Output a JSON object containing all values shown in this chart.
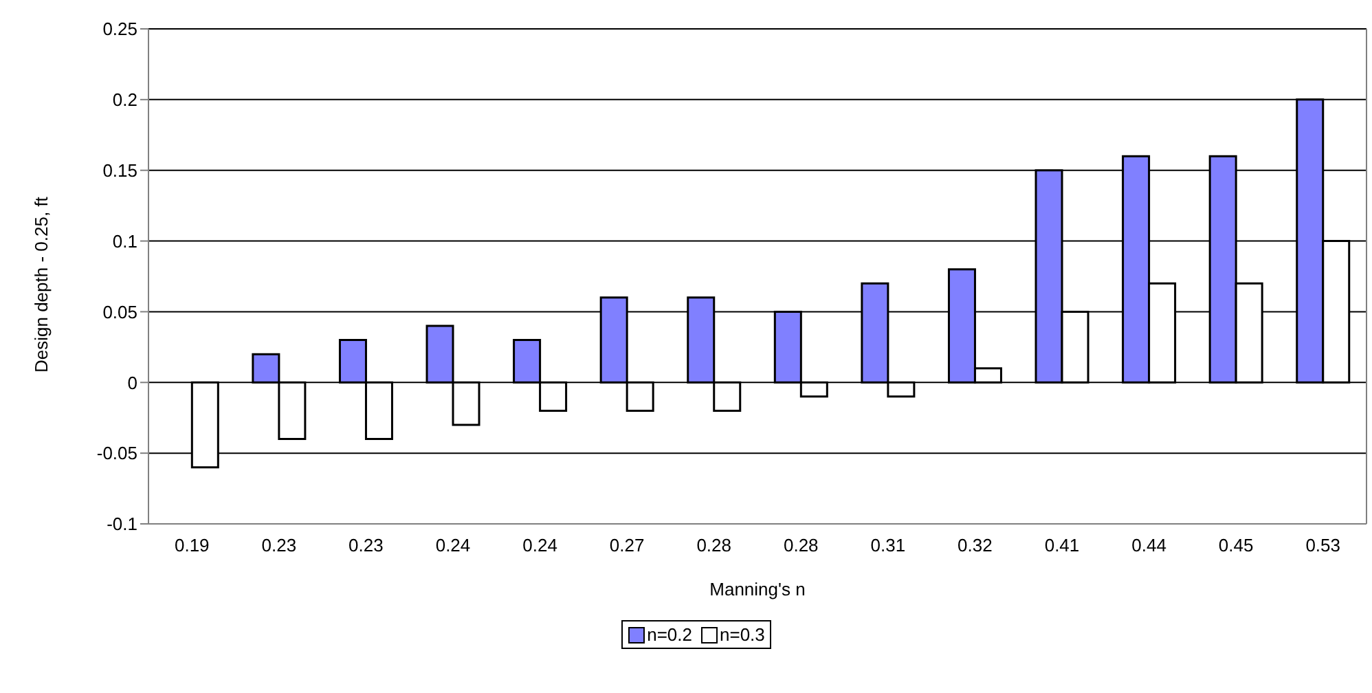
{
  "chart_data": {
    "type": "bar",
    "xlabel": "Manning's n",
    "ylabel": "Design depth - 0.25, ft",
    "categories": [
      "0.19",
      "0.23",
      "0.23",
      "0.24",
      "0.24",
      "0.27",
      "0.28",
      "0.28",
      "0.31",
      "0.32",
      "0.41",
      "0.44",
      "0.45",
      "0.53"
    ],
    "series": [
      {
        "name": "n=0.2",
        "color": "#8080ff",
        "values": [
          0,
          0.02,
          0.03,
          0.04,
          0.03,
          0.06,
          0.06,
          0.05,
          0.07,
          0.08,
          0.15,
          0.16,
          0.16,
          0.2
        ]
      },
      {
        "name": "n=0.3",
        "color": "#ffffff",
        "values": [
          -0.06,
          -0.04,
          -0.04,
          -0.03,
          -0.02,
          -0.02,
          -0.02,
          -0.01,
          -0.01,
          0.01,
          0.05,
          0.07,
          0.07,
          0.1
        ]
      }
    ],
    "ylim": [
      -0.1,
      0.25
    ],
    "yticks": [
      -0.1,
      -0.05,
      0,
      0.05,
      0.1,
      0.15,
      0.2,
      0.25
    ],
    "grid": "y",
    "legend": "bottom"
  }
}
